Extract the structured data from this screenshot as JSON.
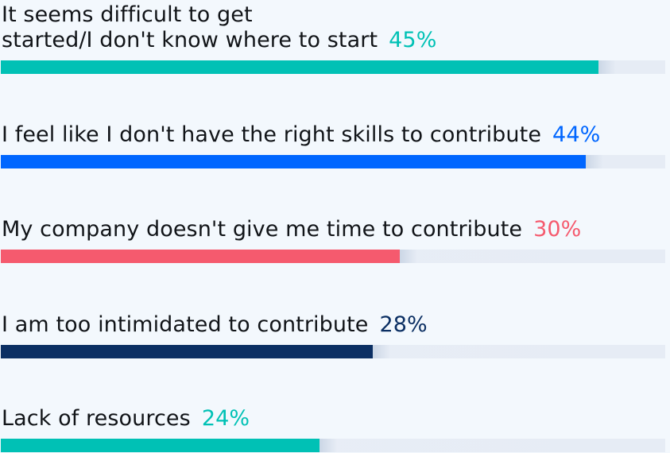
{
  "chart_data": {
    "type": "bar",
    "orientation": "horizontal",
    "xlim": [
      0,
      50
    ],
    "categories": [
      "It seems difficult to get\nstarted/I don't know where to start",
      "I feel like I don't have the right skills to contribute",
      "My company doesn't give me time to contribute",
      "I am too intimidated to contribute",
      "Lack of resources"
    ],
    "values": [
      45,
      44,
      30,
      28,
      24
    ],
    "value_labels": [
      "45%",
      "44%",
      "30%",
      "28%",
      "24%"
    ],
    "colors": [
      "#00c1b5",
      "#0066ff",
      "#f55a6e",
      "#0b2f63",
      "#00c1b5"
    ],
    "track_color": "#e7edf5",
    "grid": false,
    "legend": "none"
  }
}
